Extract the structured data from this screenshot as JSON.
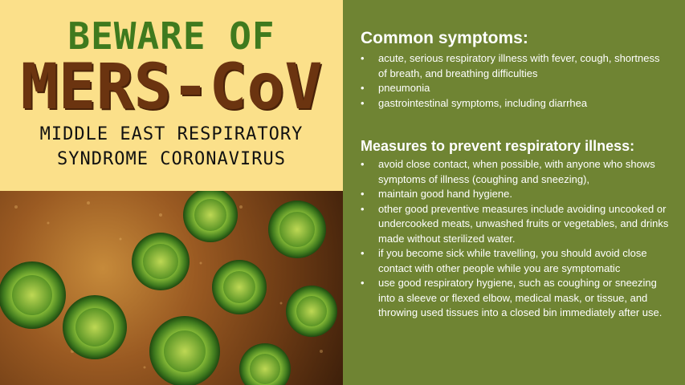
{
  "poster": {
    "line1": "BEWARE OF",
    "line2": "MERS-CoV",
    "line3": "MIDDLE EAST RESPIRATORY",
    "line4": "SYNDROME CORONAVIRUS"
  },
  "symptoms": {
    "title": "Common symptoms:",
    "items": [
      "acute, serious respiratory illness with fever, cough, shortness of breath, and breathing difficulties",
      "pneumonia",
      "gastrointestinal symptoms, including diarrhea"
    ]
  },
  "measures": {
    "title": "Measures to prevent respiratory illness:",
    "items": [
      "avoid close contact, when possible, with anyone who shows symptoms of illness (coughing and sneezing),",
      "maintain good hand hygiene.",
      "other good preventive measures include avoiding uncooked or undercooked meats, unwashed fruits or vegetables, and drinks made without sterilized water.",
      "if you become sick while travelling, you should avoid close contact with other people while you are symptomatic",
      "use good respiratory hygiene, such as coughing or sneezing into a sleeve or flexed elbow, medical mask, or tissue, and throwing used tissues into a closed bin immediately after use."
    ]
  },
  "colors": {
    "poster_bg": "#fbe08a",
    "green_text": "#3f7a1e",
    "brown_text": "#6b3410",
    "panel_bg": "#6f8433"
  }
}
